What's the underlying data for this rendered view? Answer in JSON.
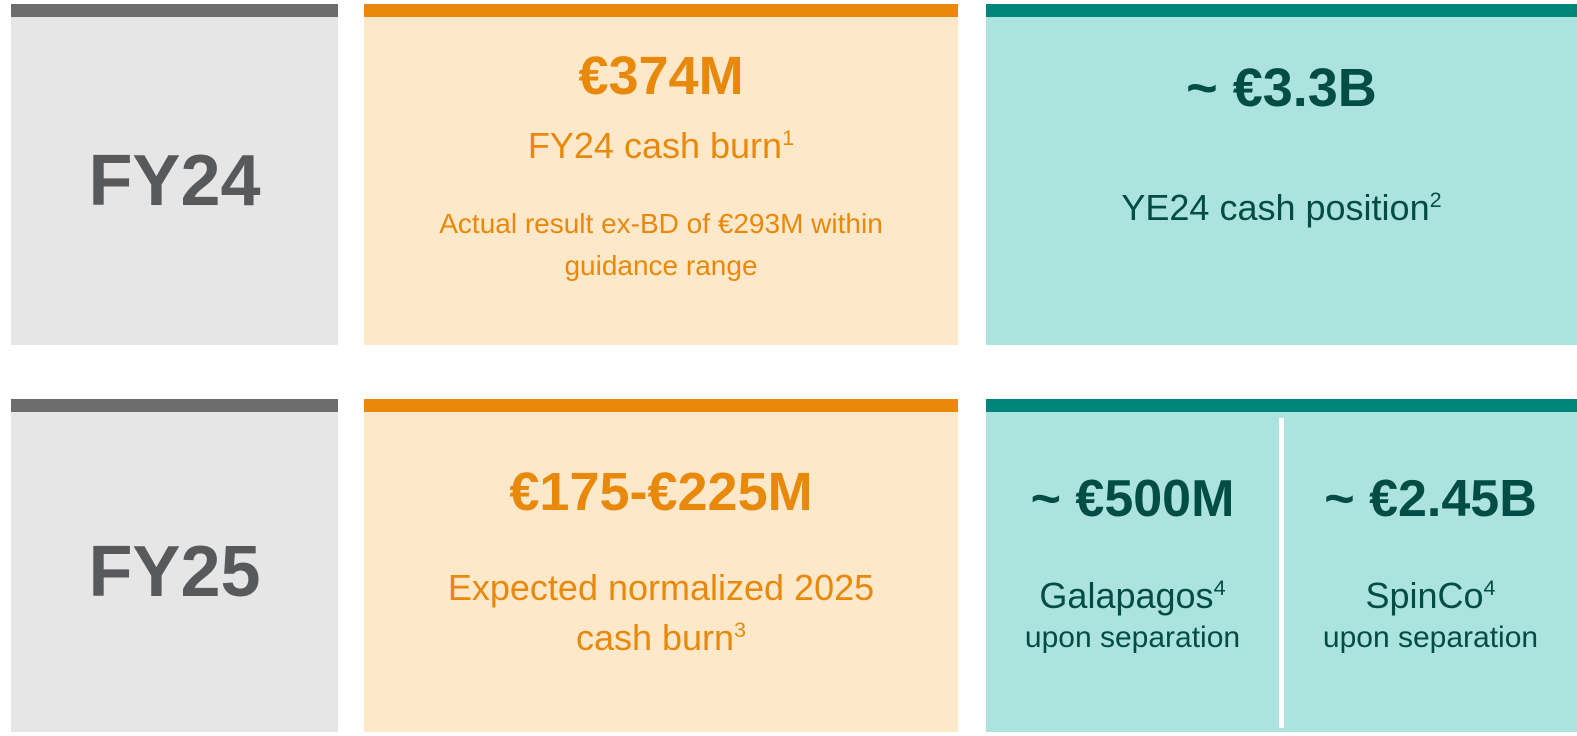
{
  "fy24": {
    "period": "FY24",
    "burn": {
      "amount": "€374M",
      "label": "FY24 cash burn",
      "footnote": "1",
      "detail": "Actual result ex-BD of €293M within guidance range"
    },
    "cash": {
      "amount": "~ €3.3B",
      "label": "YE24 cash position",
      "footnote": "2"
    }
  },
  "fy25": {
    "period": "FY25",
    "burn": {
      "amount": "€175-€225M",
      "label": "Expected normalized 2025 cash burn",
      "footnote": "3"
    },
    "cash": [
      {
        "amount": "~ €500M",
        "label": "Galapagos",
        "footnote": "4",
        "detail": "upon separation"
      },
      {
        "amount": "~ €2.45B",
        "label": "SpinCo",
        "footnote": "4",
        "detail": "upon separation"
      }
    ]
  }
}
